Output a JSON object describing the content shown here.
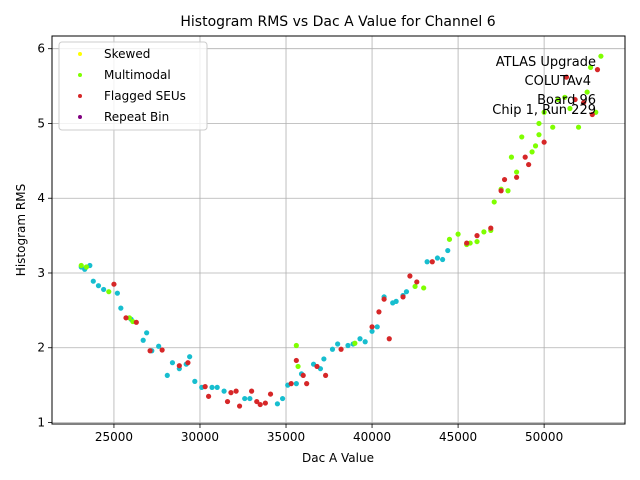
{
  "chart_data": {
    "type": "scatter",
    "title": "Histogram RMS vs Dac A Value for Channel 6",
    "xlabel": "Dac A Value",
    "ylabel": "Histogram RMS",
    "xlim": [
      21400,
      54700
    ],
    "ylim": [
      0.98,
      6.17
    ],
    "xticks": [
      25000,
      30000,
      35000,
      40000,
      45000,
      50000
    ],
    "yticks": [
      1,
      2,
      3,
      4,
      5,
      6
    ],
    "grid": true,
    "legend_position": "top-left",
    "annotation": [
      "ATLAS Upgrade",
      "COLUTAv4",
      "Board 96",
      "Chip 1, Run 229"
    ],
    "series": [
      {
        "name": "",
        "color": "#17becf",
        "points": [
          [
            23100,
            3.08
          ],
          [
            23300,
            3.05
          ],
          [
            23600,
            3.1
          ],
          [
            23800,
            2.89
          ],
          [
            24100,
            2.83
          ],
          [
            24400,
            2.78
          ],
          [
            25200,
            2.73
          ],
          [
            25400,
            2.53
          ],
          [
            26000,
            2.38
          ],
          [
            26700,
            2.1
          ],
          [
            26900,
            2.2
          ],
          [
            27200,
            1.96
          ],
          [
            27600,
            2.02
          ],
          [
            28100,
            1.63
          ],
          [
            28400,
            1.8
          ],
          [
            28800,
            1.72
          ],
          [
            29200,
            1.78
          ],
          [
            29400,
            1.88
          ],
          [
            29700,
            1.55
          ],
          [
            30100,
            1.47
          ],
          [
            30700,
            1.47
          ],
          [
            31000,
            1.47
          ],
          [
            31400,
            1.42
          ],
          [
            32600,
            1.32
          ],
          [
            32900,
            1.32
          ],
          [
            34500,
            1.25
          ],
          [
            34800,
            1.32
          ],
          [
            35100,
            1.5
          ],
          [
            35600,
            1.52
          ],
          [
            35900,
            1.65
          ],
          [
            36600,
            1.78
          ],
          [
            37000,
            1.72
          ],
          [
            37200,
            1.85
          ],
          [
            37700,
            1.98
          ],
          [
            38000,
            2.05
          ],
          [
            38600,
            2.03
          ],
          [
            38900,
            2.05
          ],
          [
            39300,
            2.12
          ],
          [
            39600,
            2.08
          ],
          [
            40000,
            2.22
          ],
          [
            40300,
            2.28
          ],
          [
            40700,
            2.68
          ],
          [
            41200,
            2.6
          ],
          [
            41400,
            2.62
          ],
          [
            41800,
            2.7
          ],
          [
            42000,
            2.75
          ],
          [
            43200,
            3.15
          ],
          [
            43800,
            3.2
          ],
          [
            44100,
            3.18
          ],
          [
            44400,
            3.3
          ]
        ]
      },
      {
        "name": "Skewed",
        "color": "#ffff00",
        "points": []
      },
      {
        "name": "Multimodal",
        "color": "#7fff00",
        "points": [
          [
            23100,
            3.1
          ],
          [
            23400,
            3.08
          ],
          [
            24700,
            2.75
          ],
          [
            25900,
            2.4
          ],
          [
            26100,
            2.35
          ],
          [
            35600,
            2.03
          ],
          [
            35700,
            1.75
          ],
          [
            39000,
            2.06
          ],
          [
            42500,
            2.82
          ],
          [
            43000,
            2.8
          ],
          [
            44500,
            3.45
          ],
          [
            45000,
            3.52
          ],
          [
            45500,
            3.38
          ],
          [
            45700,
            3.4
          ],
          [
            46100,
            3.42
          ],
          [
            46500,
            3.55
          ],
          [
            46900,
            3.57
          ],
          [
            47100,
            3.95
          ],
          [
            47500,
            4.12
          ],
          [
            47900,
            4.1
          ],
          [
            48100,
            4.55
          ],
          [
            48400,
            4.35
          ],
          [
            48700,
            4.82
          ],
          [
            49300,
            4.62
          ],
          [
            49500,
            4.7
          ],
          [
            49700,
            4.85
          ],
          [
            49700,
            5.0
          ],
          [
            50000,
            5.15
          ],
          [
            50500,
            4.95
          ],
          [
            50800,
            5.32
          ],
          [
            51200,
            5.35
          ],
          [
            51500,
            5.2
          ],
          [
            52000,
            4.95
          ],
          [
            52500,
            5.42
          ],
          [
            52700,
            5.75
          ],
          [
            53000,
            5.15
          ],
          [
            53300,
            5.9
          ]
        ]
      },
      {
        "name": "Flagged SEUs",
        "color": "#d62728",
        "points": [
          [
            25000,
            2.85
          ],
          [
            25700,
            2.4
          ],
          [
            26300,
            2.34
          ],
          [
            27100,
            1.96
          ],
          [
            27800,
            1.97
          ],
          [
            28800,
            1.76
          ],
          [
            29300,
            1.8
          ],
          [
            30300,
            1.48
          ],
          [
            30500,
            1.35
          ],
          [
            31600,
            1.28
          ],
          [
            31800,
            1.4
          ],
          [
            32100,
            1.42
          ],
          [
            32300,
            1.22
          ],
          [
            33000,
            1.42
          ],
          [
            33300,
            1.28
          ],
          [
            33500,
            1.24
          ],
          [
            33800,
            1.26
          ],
          [
            34100,
            1.38
          ],
          [
            35300,
            1.52
          ],
          [
            35600,
            1.83
          ],
          [
            36000,
            1.63
          ],
          [
            36200,
            1.52
          ],
          [
            36800,
            1.75
          ],
          [
            37300,
            1.63
          ],
          [
            38200,
            1.98
          ],
          [
            40000,
            2.28
          ],
          [
            40400,
            2.48
          ],
          [
            40700,
            2.65
          ],
          [
            41000,
            2.12
          ],
          [
            41800,
            2.68
          ],
          [
            42200,
            2.96
          ],
          [
            42600,
            2.88
          ],
          [
            43500,
            3.15
          ],
          [
            45500,
            3.4
          ],
          [
            46100,
            3.5
          ],
          [
            46900,
            3.6
          ],
          [
            47500,
            4.1
          ],
          [
            47700,
            4.25
          ],
          [
            48400,
            4.28
          ],
          [
            48900,
            4.55
          ],
          [
            49100,
            4.45
          ],
          [
            50000,
            4.75
          ],
          [
            51300,
            5.62
          ],
          [
            51800,
            5.32
          ],
          [
            52300,
            5.28
          ],
          [
            52800,
            5.12
          ],
          [
            53100,
            5.72
          ]
        ]
      },
      {
        "name": "Repeat Bin",
        "color": "#800080",
        "points": []
      }
    ]
  }
}
